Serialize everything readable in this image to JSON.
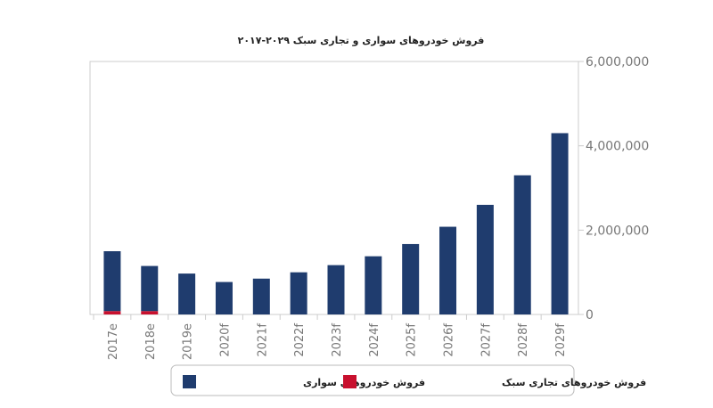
{
  "chart_data": {
    "type": "bar",
    "stacked": true,
    "title": "فروش خودروهای سواری و تجاری سبک ۲۰۲۹-۲۰۱۷",
    "xlabel": "",
    "ylabel": "",
    "categories": [
      "2017e",
      "2018e",
      "2019e",
      "2020f",
      "2021f",
      "2022f",
      "2023f",
      "2024f",
      "2025f",
      "2026f",
      "2027f",
      "2028f",
      "2029f"
    ],
    "series": [
      {
        "name": "فروش خودروهای تجاری سبک",
        "color": "#c8102e",
        "values": [
          80000,
          80000,
          0,
          0,
          0,
          0,
          0,
          0,
          0,
          0,
          0,
          0,
          0
        ]
      },
      {
        "name": "فروش خودروهای سواری",
        "color": "#1f3c6e",
        "values": [
          1420000,
          1070000,
          970000,
          770000,
          850000,
          1000000,
          1170000,
          1380000,
          1670000,
          2080000,
          2600000,
          3300000,
          4300000
        ]
      }
    ],
    "ylim": [
      0,
      6000000
    ],
    "yticks": [
      "0",
      "2,000,000",
      "4,000,000",
      "6,000,000"
    ],
    "ytick_values": [
      0,
      2000000,
      4000000,
      6000000
    ],
    "y_axis_side": "right",
    "grid": false,
    "legend_position": "bottom"
  }
}
